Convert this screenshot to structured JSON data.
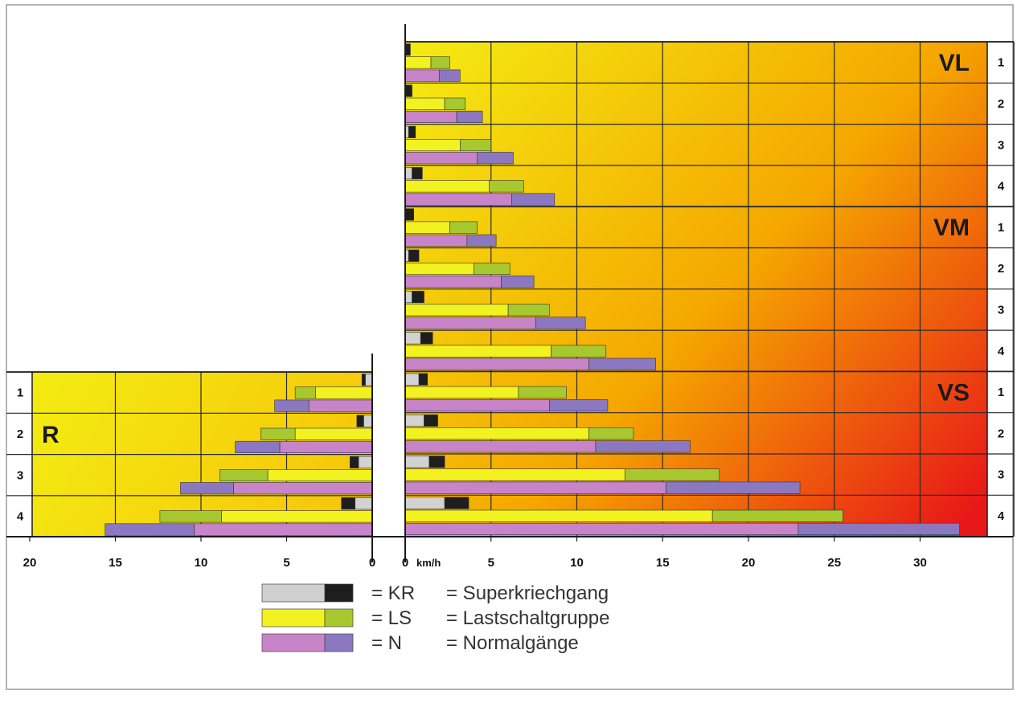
{
  "chart_data": {
    "type": "bar",
    "orientation": "horizontal",
    "x_unit": "km/h",
    "forward": {
      "x_ticks": [
        "0",
        "5",
        "10",
        "15",
        "20",
        "25",
        "30"
      ],
      "x_unit_label": "km/h",
      "xlim": [
        0,
        34
      ],
      "groups": [
        {
          "name": "VL",
          "rows": [
            {
              "gear": "1",
              "KR": [
                0.0,
                0.3
              ],
              "LS": [
                1.5,
                2.6
              ],
              "N": [
                2.0,
                3.2
              ]
            },
            {
              "gear": "2",
              "KR": [
                0.0,
                0.4
              ],
              "LS": [
                2.3,
                3.5
              ],
              "N": [
                3.0,
                4.5
              ]
            },
            {
              "gear": "3",
              "KR": [
                0.2,
                0.6
              ],
              "LS": [
                3.2,
                5.0
              ],
              "N": [
                4.2,
                6.3
              ]
            },
            {
              "gear": "4",
              "KR": [
                0.4,
                1.0
              ],
              "LS": [
                4.9,
                6.9
              ],
              "N": [
                6.2,
                8.7
              ]
            }
          ]
        },
        {
          "name": "VM",
          "rows": [
            {
              "gear": "1",
              "KR": [
                0.0,
                0.5
              ],
              "LS": [
                2.6,
                4.2
              ],
              "N": [
                3.6,
                5.3
              ]
            },
            {
              "gear": "2",
              "KR": [
                0.2,
                0.8
              ],
              "LS": [
                4.0,
                6.1
              ],
              "N": [
                5.6,
                7.5
              ]
            },
            {
              "gear": "3",
              "KR": [
                0.4,
                1.1
              ],
              "LS": [
                6.0,
                8.4
              ],
              "N": [
                7.6,
                10.5
              ]
            },
            {
              "gear": "4",
              "KR": [
                0.9,
                1.6
              ],
              "LS": [
                8.5,
                11.7
              ],
              "N": [
                10.7,
                14.6
              ]
            }
          ]
        },
        {
          "name": "VS",
          "rows": [
            {
              "gear": "1",
              "KR": [
                0.8,
                1.3
              ],
              "LS": [
                6.6,
                9.4
              ],
              "N": [
                8.4,
                11.8
              ]
            },
            {
              "gear": "2",
              "KR": [
                1.1,
                1.9
              ],
              "LS": [
                10.7,
                13.3
              ],
              "N": [
                11.1,
                16.6
              ]
            },
            {
              "gear": "3",
              "KR": [
                1.4,
                2.3
              ],
              "LS": [
                12.8,
                18.3
              ],
              "N": [
                15.2,
                23.0
              ]
            },
            {
              "gear": "4",
              "KR": [
                2.3,
                3.7
              ],
              "LS": [
                17.9,
                25.5
              ],
              "N": [
                22.9,
                32.3
              ]
            }
          ]
        }
      ]
    },
    "reverse": {
      "name": "R",
      "x_ticks": [
        "20",
        "15",
        "10",
        "5",
        "0"
      ],
      "xlim": [
        0,
        20
      ],
      "rows": [
        {
          "gear": "1",
          "KR": [
            0.4,
            0.6
          ],
          "LS": [
            3.3,
            4.5
          ],
          "N": [
            3.7,
            5.7
          ]
        },
        {
          "gear": "2",
          "KR": [
            0.5,
            0.9
          ],
          "LS": [
            4.5,
            6.5
          ],
          "N": [
            5.4,
            8.0
          ]
        },
        {
          "gear": "3",
          "KR": [
            0.8,
            1.3
          ],
          "LS": [
            6.1,
            8.9
          ],
          "N": [
            8.1,
            11.2
          ]
        },
        {
          "gear": "4",
          "KR": [
            1.0,
            1.8
          ],
          "LS": [
            8.8,
            12.4
          ],
          "N": [
            10.4,
            15.6
          ]
        }
      ]
    },
    "legend": [
      {
        "code": "KR",
        "desc": "Superkriechgang",
        "colors": [
          "#cfcfcf",
          "#1e1e1e"
        ]
      },
      {
        "code": "LS",
        "desc": "Lastschaltgruppe",
        "colors": [
          "#f2f220",
          "#a8c830"
        ]
      },
      {
        "code": "N",
        "desc": "Normalgänge",
        "colors": [
          "#c884c8",
          "#8c78c0"
        ]
      }
    ],
    "legend_placement": "bottom-center",
    "grid": true,
    "background_gradient": [
      "#f4ec12",
      "#f5a700",
      "#e81818"
    ]
  }
}
